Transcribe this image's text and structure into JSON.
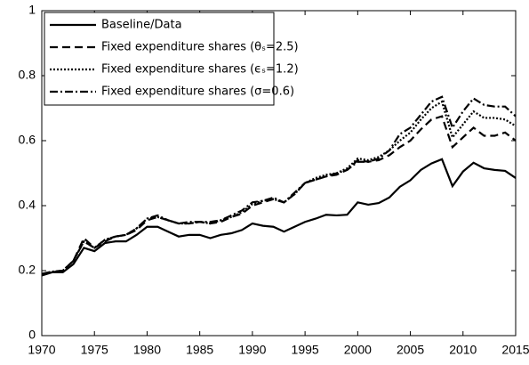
{
  "chart_data": {
    "type": "line",
    "x": [
      1970,
      1971,
      1972,
      1973,
      1974,
      1975,
      1976,
      1977,
      1978,
      1979,
      1980,
      1981,
      1982,
      1983,
      1984,
      1985,
      1986,
      1987,
      1988,
      1989,
      1990,
      1991,
      1992,
      1993,
      1994,
      1995,
      1996,
      1997,
      1998,
      1999,
      2000,
      2001,
      2002,
      2003,
      2004,
      2005,
      2006,
      2007,
      2008,
      2009,
      2010,
      2011,
      2012,
      2013,
      2014,
      2015
    ],
    "xlim": [
      1970,
      2015
    ],
    "xticks": [
      1970,
      1975,
      1980,
      1985,
      1990,
      1995,
      2000,
      2005,
      2010,
      2015
    ],
    "ylim": [
      0,
      1
    ],
    "yticks": [
      0,
      0.2,
      0.4,
      0.6,
      0.8,
      1
    ],
    "legend": "upper left",
    "series": [
      {
        "name": "Baseline/Data",
        "color": "#000000",
        "style": "solid",
        "values": [
          0.185,
          0.195,
          0.195,
          0.22,
          0.27,
          0.26,
          0.285,
          0.29,
          0.29,
          0.31,
          0.335,
          0.335,
          0.32,
          0.305,
          0.31,
          0.31,
          0.3,
          0.31,
          0.315,
          0.325,
          0.345,
          0.338,
          0.335,
          0.32,
          0.335,
          0.35,
          0.36,
          0.372,
          0.37,
          0.372,
          0.41,
          0.403,
          0.408,
          0.425,
          0.458,
          0.478,
          0.51,
          0.53,
          0.543,
          0.46,
          0.505,
          0.532,
          0.515,
          0.51,
          0.507,
          0.485
        ]
      },
      {
        "name": "Fixed expenditure shares (θₛ=2.5)",
        "color": "#000000",
        "style": "dashed",
        "values": [
          0.19,
          0.195,
          0.2,
          0.23,
          0.3,
          0.27,
          0.29,
          0.305,
          0.31,
          0.325,
          0.355,
          0.365,
          0.355,
          0.345,
          0.345,
          0.35,
          0.345,
          0.35,
          0.365,
          0.375,
          0.4,
          0.41,
          0.42,
          0.41,
          0.435,
          0.47,
          0.48,
          0.49,
          0.495,
          0.51,
          0.54,
          0.535,
          0.54,
          0.555,
          0.58,
          0.6,
          0.635,
          0.665,
          0.675,
          0.58,
          0.61,
          0.64,
          0.615,
          0.615,
          0.625,
          0.6
        ]
      },
      {
        "name": "Fixed expenditure shares (ϵₛ=1.2)",
        "color": "#000000",
        "style": "dotted",
        "values": [
          0.19,
          0.197,
          0.2,
          0.23,
          0.29,
          0.27,
          0.295,
          0.305,
          0.31,
          0.33,
          0.36,
          0.365,
          0.355,
          0.345,
          0.345,
          0.35,
          0.345,
          0.355,
          0.365,
          0.38,
          0.405,
          0.415,
          0.42,
          0.41,
          0.435,
          0.47,
          0.485,
          0.495,
          0.5,
          0.515,
          0.545,
          0.54,
          0.55,
          0.57,
          0.6,
          0.625,
          0.665,
          0.7,
          0.72,
          0.61,
          0.65,
          0.69,
          0.67,
          0.67,
          0.665,
          0.645
        ]
      },
      {
        "name": "Fixed expenditure shares (σ=0.6)",
        "color": "#000000",
        "style": "dashdot",
        "values": [
          0.19,
          0.197,
          0.2,
          0.23,
          0.29,
          0.27,
          0.295,
          0.305,
          0.31,
          0.33,
          0.36,
          0.37,
          0.355,
          0.345,
          0.35,
          0.35,
          0.35,
          0.355,
          0.37,
          0.385,
          0.41,
          0.415,
          0.425,
          0.41,
          0.44,
          0.47,
          0.48,
          0.49,
          0.5,
          0.51,
          0.535,
          0.535,
          0.545,
          0.57,
          0.62,
          0.64,
          0.68,
          0.72,
          0.735,
          0.64,
          0.69,
          0.73,
          0.71,
          0.705,
          0.705,
          0.675
        ]
      }
    ]
  }
}
